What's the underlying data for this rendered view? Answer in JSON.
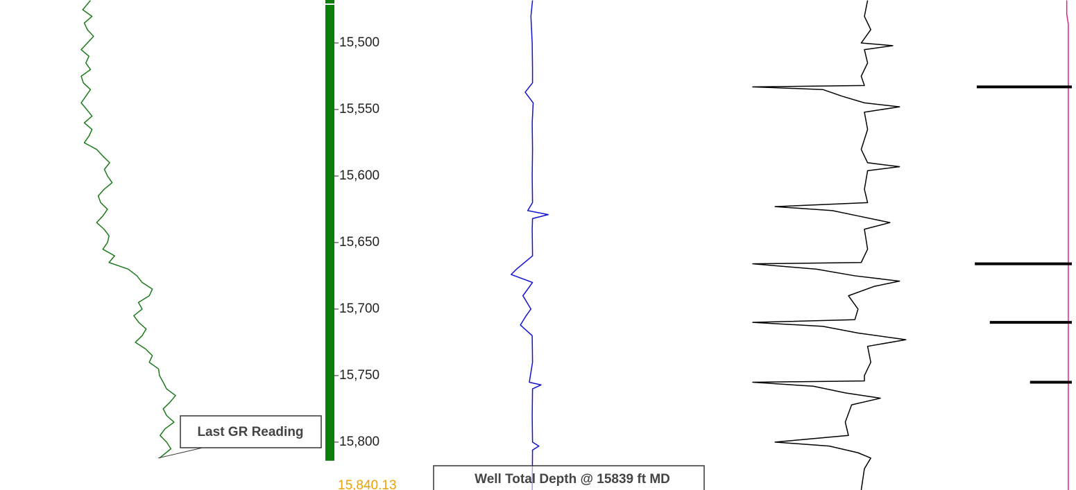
{
  "chart_data": {
    "type": "well-log",
    "ylim": [
      15467.7,
      15836
    ],
    "y_inverted": true,
    "yticks": [
      {
        "value": 15500,
        "label": "15,500"
      },
      {
        "value": 15550,
        "label": "15,550"
      },
      {
        "value": 15600,
        "label": "15,600"
      },
      {
        "value": 15650,
        "label": "15,650"
      },
      {
        "value": 15700,
        "label": "15,700"
      },
      {
        "value": 15750,
        "label": "15,750"
      },
      {
        "value": 15800,
        "label": "15,800"
      }
    ],
    "minor_per_major": 5,
    "x_divisions": 10,
    "grid": true,
    "current_depth": {
      "value": 15840.13,
      "label": "15,840.13"
    },
    "depth_bar_end": 15814,
    "depth_bar_color": "#0a7d0a",
    "tracks": [
      {
        "xlim": [
          0,
          100
        ],
        "series": [
          {
            "color": "#1a7a1a",
            "depths": [
              15468,
              15475,
              15480,
              15485,
              15490,
              15495,
              15500,
              15505,
              15510,
              15515,
              15520,
              15525,
              15530,
              15535,
              15540,
              15545,
              15550,
              15555,
              15560,
              15565,
              15570,
              15575,
              15580,
              15585,
              15590,
              15595,
              15600,
              15605,
              15610,
              15615,
              15620,
              15625,
              15630,
              15635,
              15640,
              15645,
              15650,
              15655,
              15660,
              15665,
              15670,
              15675,
              15680,
              15685,
              15690,
              15695,
              15700,
              15705,
              15710,
              15715,
              15720,
              15725,
              15730,
              15735,
              15740,
              15745,
              15750,
              15755,
              15760,
              15765,
              15770,
              15775,
              15780,
              15785,
              15790,
              15795,
              15800,
              15805,
              15812
            ],
            "values": [
              27,
              24.5,
              27.5,
              25,
              26,
              28,
              26,
              24,
              26.5,
              25.5,
              27,
              24,
              24.7,
              27,
              25.5,
              24,
              25.8,
              27.5,
              25,
              27.5,
              26.5,
              25,
              29,
              31,
              33.2,
              31.5,
              32.5,
              34,
              31.4,
              29.5,
              30.3,
              32.5,
              31,
              29,
              31.4,
              33,
              32.5,
              31,
              34.8,
              33,
              39.2,
              42,
              43.7,
              47,
              46,
              42.5,
              43.7,
              41,
              42.6,
              45,
              43.7,
              41.5,
              44.8,
              47,
              46,
              49,
              49.3,
              50.5,
              51.6,
              54.5,
              52.7,
              50.5,
              51.6,
              54,
              51.1,
              49.5,
              51.6,
              53,
              49.3
            ]
          }
        ]
      },
      {
        "xlim": [
          0,
          100
        ],
        "series": [
          {
            "color": "#1010d0",
            "depths": [
              15468,
              15480,
              15500,
              15520,
              15530,
              15537,
              15545,
              15560,
              15580,
              15600,
              15620,
              15626,
              15629,
              15632,
              15640,
              15660,
              15670,
              15674,
              15680,
              15690,
              15700,
              15705,
              15712,
              15720,
              15740,
              15755,
              15757,
              15760,
              15780,
              15800,
              15803,
              15806,
              15836
            ],
            "values": [
              31,
              30.5,
              30.9,
              31,
              31,
              28.7,
              31.2,
              30.9,
              31,
              30.9,
              31,
              29.5,
              35.9,
              31,
              30.9,
              31,
              26,
              24.3,
              31,
              28,
              30.5,
              29,
              27.2,
              30.9,
              31,
              30,
              33.7,
              31,
              30.9,
              31,
              33,
              31,
              30.9
            ]
          }
        ]
      },
      {
        "xlim": [
          0,
          100
        ],
        "series": [
          {
            "color": "#000000",
            "depths": [
              15468,
              15480,
              15490,
              15500,
              15502,
              15505,
              15515,
              15525,
              15532,
              15533,
              15535,
              15540,
              15545,
              15548,
              15552,
              15565,
              15580,
              15590,
              15593,
              15596,
              15610,
              15620,
              15623,
              15626,
              15630,
              15635,
              15640,
              15655,
              15665,
              15666,
              15670,
              15675,
              15679,
              15683,
              15690,
              15700,
              15708,
              15710,
              15713,
              15718,
              15723,
              15728,
              15740,
              15750,
              15754,
              15755,
              15758,
              15763,
              15767,
              15772,
              15785,
              15795,
              15800,
              15803,
              15808,
              15812,
              15820,
              15836
            ],
            "values": [
              36,
              35,
              37,
              34,
              43.9,
              35,
              36,
              34,
              35,
              0,
              22,
              28,
              35,
              46,
              35,
              36,
              34,
              36,
              46,
              36,
              35,
              36,
              7,
              25,
              33,
              43,
              35,
              36,
              34,
              0,
              20,
              32,
              46,
              38,
              30,
              33,
              32,
              0,
              22,
              33,
              48,
              36,
              37,
              35,
              35,
              0,
              19,
              29,
              40,
              31,
              29,
              30,
              7,
              24,
              33,
              37,
              35,
              34
            ]
          },
          {
            "color": "#e0208a",
            "depths": [
              15468,
              15478,
              15486,
              15836
            ],
            "values": [
              98.4,
              98.4,
              98.9,
              98.9
            ]
          }
        ],
        "markers": {
          "color": "#000000",
          "depths": [
            15533,
            15666,
            15710,
            15755
          ],
          "values": [
            70.2,
            69.6,
            74.3,
            86.9
          ]
        }
      }
    ],
    "annotations": [
      {
        "text": "Last GR Reading",
        "depth": 15812
      },
      {
        "text": "Well Total Depth @ 15839 ft MD"
      }
    ]
  }
}
